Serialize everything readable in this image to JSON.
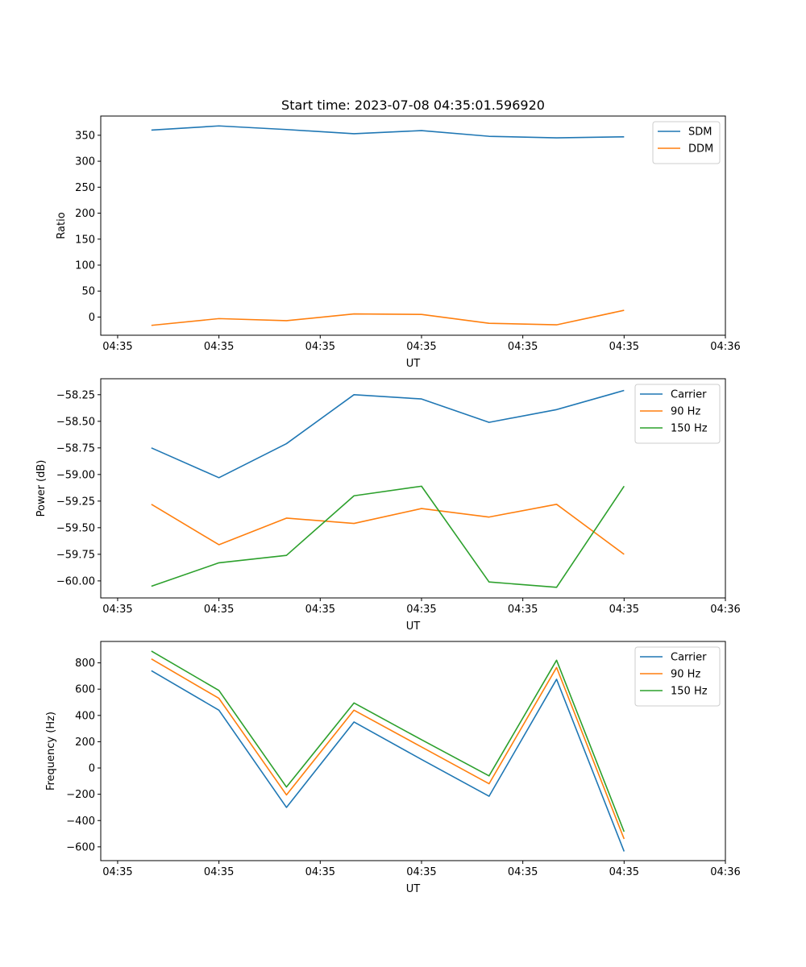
{
  "figure": {
    "title": "Start time: 2023-07-08 04:35:01.596920"
  },
  "colors": {
    "blue": "#1f77b4",
    "orange": "#ff7f0e",
    "green": "#2ca02c"
  },
  "chart_data": [
    {
      "type": "line",
      "title": "Start time: 2023-07-08 04:35:01.596920",
      "xlabel": "UT",
      "ylabel": "Ratio",
      "x": [
        1,
        2,
        3,
        4,
        5,
        6,
        7,
        8
      ],
      "xlim": [
        0.25,
        9.5
      ],
      "xticks": [
        0.5,
        2,
        3.5,
        5,
        6.5,
        8,
        9.5
      ],
      "xtick_labels": [
        "04:35",
        "04:35",
        "04:35",
        "04:35",
        "04:35",
        "04:35",
        "04:36"
      ],
      "ylim": [
        -35,
        387
      ],
      "yticks": [
        0,
        50,
        100,
        150,
        200,
        250,
        300,
        350
      ],
      "ytick_labels": [
        "0",
        "50",
        "100",
        "150",
        "200",
        "250",
        "300",
        "350"
      ],
      "legend_position": "top-right",
      "series": [
        {
          "name": "SDM",
          "color": "blue",
          "values": [
            360,
            368,
            361,
            353,
            359,
            348,
            345,
            347
          ]
        },
        {
          "name": "DDM",
          "color": "orange",
          "values": [
            -16,
            -3,
            -7,
            6,
            5,
            -12,
            -15,
            13
          ]
        }
      ]
    },
    {
      "type": "line",
      "title": "",
      "xlabel": "UT",
      "ylabel": "Power (dB)",
      "x": [
        1,
        2,
        3,
        4,
        5,
        6,
        7,
        8
      ],
      "xlim": [
        0.25,
        9.5
      ],
      "xticks": [
        0.5,
        2,
        3.5,
        5,
        6.5,
        8,
        9.5
      ],
      "xtick_labels": [
        "04:35",
        "04:35",
        "04:35",
        "04:35",
        "04:35",
        "04:35",
        "04:36"
      ],
      "ylim": [
        -60.16,
        -58.1
      ],
      "yticks": [
        -58.25,
        -58.5,
        -58.75,
        -59.0,
        -59.25,
        -59.5,
        -59.75,
        -60.0
      ],
      "ytick_labels": [
        "−58.25",
        "−58.50",
        "−58.75",
        "−59.00",
        "−59.25",
        "−59.50",
        "−59.75",
        "−60.00"
      ],
      "legend_position": "top-right",
      "series": [
        {
          "name": "Carrier",
          "color": "blue",
          "values": [
            -58.75,
            -59.03,
            -58.71,
            -58.25,
            -58.29,
            -58.51,
            -58.39,
            -58.21
          ]
        },
        {
          "name": "90 Hz",
          "color": "orange",
          "values": [
            -59.28,
            -59.66,
            -59.41,
            -59.46,
            -59.32,
            -59.4,
            -59.28,
            -59.75
          ]
        },
        {
          "name": "150 Hz",
          "color": "green",
          "values": [
            -60.05,
            -59.83,
            -59.76,
            -59.2,
            -59.11,
            -60.01,
            -60.06,
            -59.11
          ]
        }
      ]
    },
    {
      "type": "line",
      "title": "",
      "xlabel": "UT",
      "ylabel": "Frequency (Hz)",
      "x": [
        1,
        2,
        3,
        4,
        5,
        6,
        7,
        8
      ],
      "xlim": [
        0.25,
        9.5
      ],
      "xticks": [
        0.5,
        2,
        3.5,
        5,
        6.5,
        8,
        9.5
      ],
      "xtick_labels": [
        "04:35",
        "04:35",
        "04:35",
        "04:35",
        "04:35",
        "04:35",
        "04:36"
      ],
      "ylim": [
        -705,
        963
      ],
      "yticks": [
        800,
        600,
        400,
        200,
        0,
        -200,
        -400,
        -600
      ],
      "ytick_labels": [
        "800",
        "600",
        "400",
        "200",
        "0",
        "−200",
        "−400",
        "−600"
      ],
      "legend_position": "top-right",
      "series": [
        {
          "name": "Carrier",
          "color": "blue",
          "values": [
            740,
            440,
            -300,
            350,
            65,
            -215,
            675,
            -635
          ]
        },
        {
          "name": "90 Hz",
          "color": "orange",
          "values": [
            830,
            530,
            -205,
            440,
            160,
            -120,
            765,
            -540
          ]
        },
        {
          "name": "150 Hz",
          "color": "green",
          "values": [
            890,
            590,
            -145,
            495,
            215,
            -60,
            820,
            -485
          ]
        }
      ]
    }
  ]
}
